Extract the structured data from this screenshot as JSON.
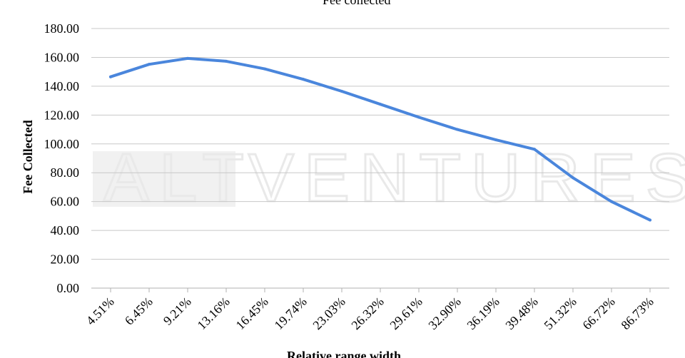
{
  "chart_data": {
    "type": "line",
    "legend": {
      "position": "top",
      "label": "Fee collected"
    },
    "xlabel": "Relative range width",
    "ylabel": "Fee Collected",
    "ylim": [
      0,
      180
    ],
    "ytick_step": 20,
    "yticks": [
      "0.00",
      "20.00",
      "40.00",
      "60.00",
      "80.00",
      "100.00",
      "120.00",
      "140.00",
      "160.00",
      "180.00"
    ],
    "grid": "horizontal",
    "categories": [
      "4.51%",
      "6.45%",
      "9.21%",
      "13.16%",
      "16.45%",
      "19.74%",
      "23.03%",
      "26.32%",
      "29.61%",
      "32.90%",
      "36.19%",
      "39.48%",
      "51.32%",
      "66.72%",
      "86.73%"
    ],
    "series": [
      {
        "name": "Fee collected",
        "color": "#4a86dc",
        "values": [
          146.5,
          155.2,
          159.3,
          157.3,
          152.0,
          144.8,
          136.5,
          127.5,
          118.5,
          110.0,
          102.8,
          96.3,
          76.5,
          60.0,
          47.2
        ]
      }
    ],
    "watermark": {
      "left": "ALT",
      "right": "VENTURES"
    }
  }
}
